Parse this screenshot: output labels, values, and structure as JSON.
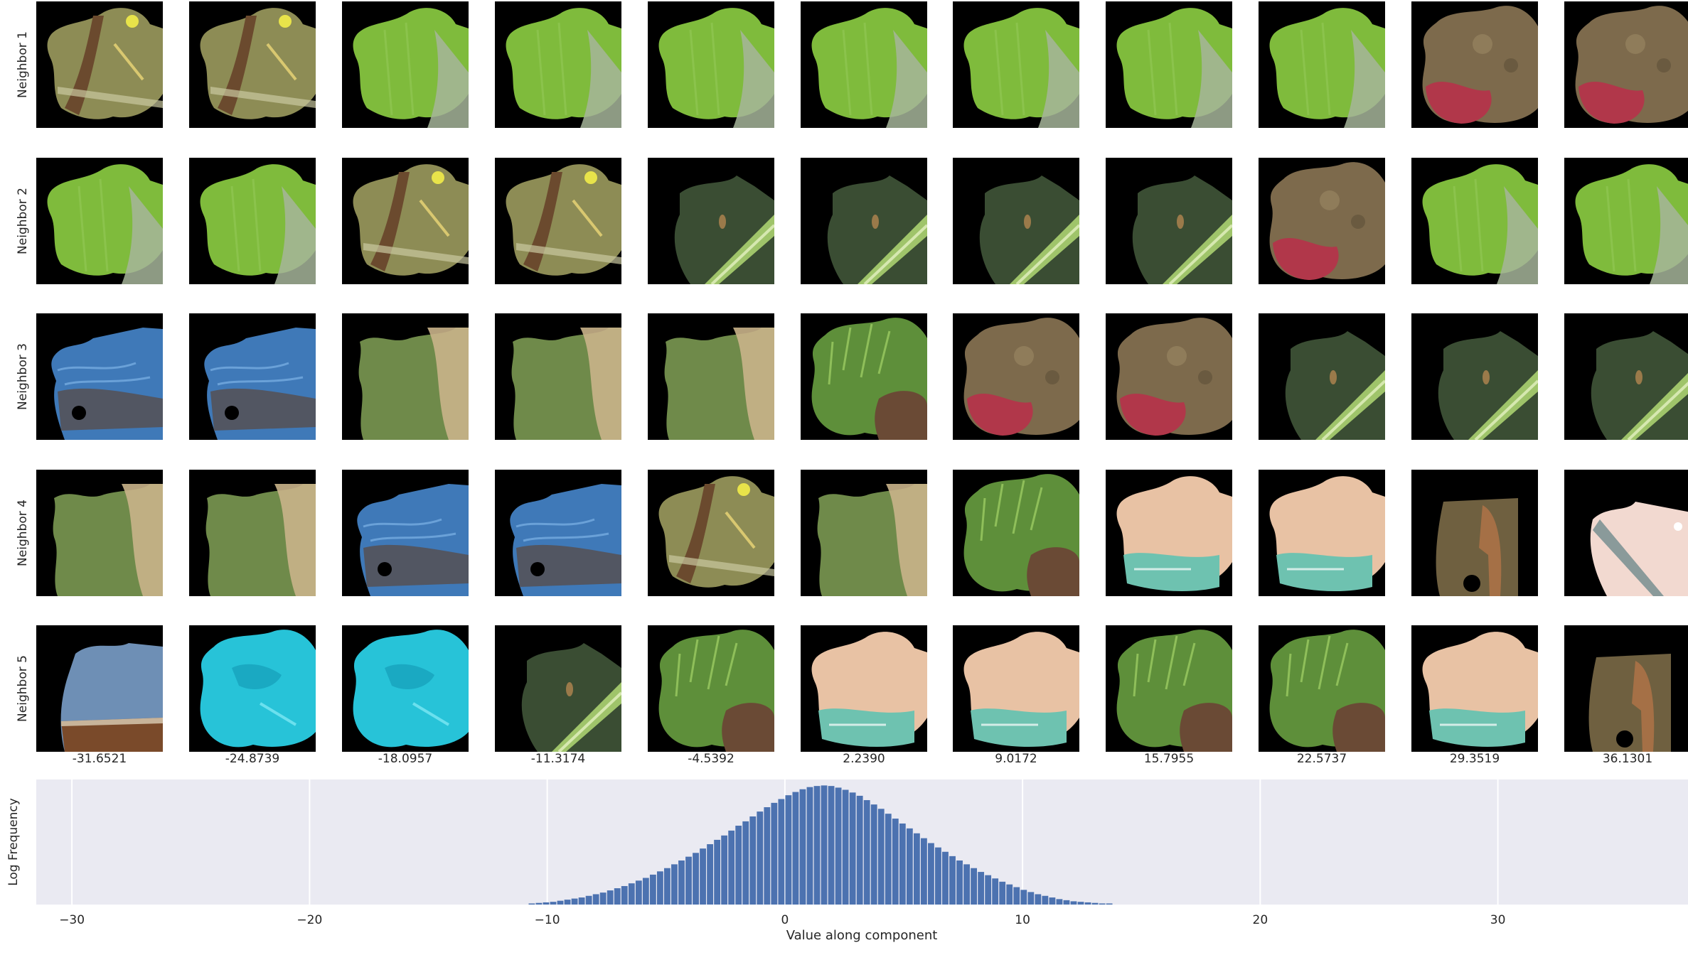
{
  "rows": [
    "Neighbor 1",
    "Neighbor 2",
    "Neighbor 3",
    "Neighbor 4",
    "Neighbor 5"
  ],
  "columns": [
    "-31.6521",
    "-24.8739",
    "-18.0957",
    "-11.3174",
    "-4.5392",
    "2.2390",
    "9.0172",
    "15.7955",
    "22.5737",
    "29.3519",
    "36.1301"
  ],
  "patch_types": {
    "twig": "twig-leaf-patch",
    "leaf": "green-leaf-patch",
    "soil": "soil-red-patch",
    "stem": "dark-stem-patch",
    "water": "blue-water-patch",
    "blur": "blurred-green-patch",
    "grass": "grass-patch",
    "skin": "peach-skin-patch",
    "deer": "deer-patch",
    "pink": "pink-stripe-patch",
    "sky": "sky-patch",
    "cyan": "cyan-patch"
  },
  "grid": [
    [
      "twig",
      "twig",
      "leaf",
      "leaf",
      "leaf",
      "leaf",
      "leaf",
      "leaf",
      "leaf",
      "soil",
      "soil"
    ],
    [
      "leaf",
      "leaf",
      "twig",
      "twig",
      "stem",
      "stem",
      "stem",
      "stem",
      "soil",
      "leaf",
      "leaf"
    ],
    [
      "water",
      "water",
      "blur",
      "blur",
      "blur",
      "grass",
      "soil",
      "soil",
      "stem",
      "stem",
      "stem"
    ],
    [
      "blur",
      "blur",
      "water",
      "water",
      "twig",
      "blur",
      "grass",
      "skin",
      "skin",
      "deer",
      "pink"
    ],
    [
      "sky",
      "cyan",
      "cyan",
      "stem",
      "grass",
      "skin",
      "skin",
      "grass",
      "grass",
      "skin",
      "deer"
    ]
  ],
  "chart_data": {
    "type": "bar",
    "xlabel": "Value along component",
    "ylabel": "Log Frequency",
    "xlim": [
      -31.5,
      38
    ],
    "xticks": [
      -30,
      -20,
      -10,
      0,
      10,
      20,
      30
    ],
    "xtick_labels": [
      "−30",
      "−20",
      "−10",
      "0",
      "10",
      "20",
      "30"
    ],
    "grid": true,
    "bar_color": "#4c72b0",
    "background": "#eaeaf2",
    "bins": {
      "start": -10.8,
      "width": 0.3,
      "values": [
        0.02,
        0.03,
        0.04,
        0.05,
        0.07,
        0.09,
        0.11,
        0.13,
        0.16,
        0.19,
        0.22,
        0.26,
        0.3,
        0.34,
        0.39,
        0.44,
        0.49,
        0.55,
        0.61,
        0.67,
        0.74,
        0.81,
        0.88,
        0.95,
        1.03,
        1.11,
        1.19,
        1.27,
        1.36,
        1.45,
        1.53,
        1.62,
        1.71,
        1.79,
        1.87,
        1.94,
        2.01,
        2.07,
        2.12,
        2.16,
        2.18,
        2.19,
        2.18,
        2.15,
        2.11,
        2.06,
        2.0,
        1.92,
        1.84,
        1.76,
        1.67,
        1.58,
        1.49,
        1.4,
        1.31,
        1.22,
        1.13,
        1.05,
        0.97,
        0.89,
        0.81,
        0.74,
        0.67,
        0.6,
        0.54,
        0.48,
        0.42,
        0.37,
        0.32,
        0.27,
        0.23,
        0.19,
        0.16,
        0.13,
        0.1,
        0.08,
        0.06,
        0.05,
        0.04,
        0.03,
        0.02,
        0.02
      ]
    }
  }
}
